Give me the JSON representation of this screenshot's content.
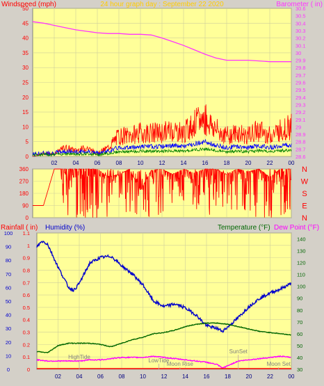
{
  "panel_wind": {
    "left_title": "Windspeed (mph)",
    "center_title": "24 hour graph day : September 22 2020",
    "right_title": "Barometer ( in)",
    "left_ticks": [
      "0",
      "5",
      "10",
      "15",
      "20",
      "25",
      "30",
      "35",
      "40",
      "45",
      "50"
    ],
    "right_ticks": [
      "28.6",
      "28.7",
      "28.8",
      "28.9",
      "29",
      "29.1",
      "29.2",
      "29.3",
      "29.4",
      "29.5",
      "29.6",
      "29.7",
      "29.8",
      "29.9",
      "30",
      "30.1",
      "30.2",
      "30.3",
      "30.4",
      "30.5",
      "30.6"
    ],
    "x_ticks": [
      "02",
      "04",
      "06",
      "08",
      "10",
      "12",
      "14",
      "16",
      "18",
      "20",
      "22",
      "00"
    ]
  },
  "panel_dir": {
    "left_ticks": [
      "0",
      "90",
      "180",
      "270",
      "360"
    ],
    "compass": [
      "N",
      "W",
      "S",
      "E",
      "N"
    ]
  },
  "panel_rain": {
    "rain_title": "Rainfall ( in)",
    "humidity_title": "Humidity (%)",
    "temp_title": "Temperature (°F)",
    "dew_title": "Dew Point (°F)",
    "humidity_ticks": [
      "0",
      "10",
      "20",
      "30",
      "40",
      "50",
      "60",
      "70",
      "80",
      "90",
      "100"
    ],
    "rain_ticks": [
      "0",
      "0.1",
      "0.2",
      "0.3",
      "0.4",
      "0.5",
      "0.6",
      "0.7",
      "0.8",
      "0.9",
      "1",
      "1.1"
    ],
    "temp_ticks": [
      "30",
      "40",
      "50",
      "60",
      "70",
      "80",
      "90",
      "100",
      "110",
      "120",
      "130",
      "140"
    ],
    "x_ticks": [
      "02",
      "04",
      "06",
      "08",
      "10",
      "12",
      "14",
      "16",
      "18",
      "20",
      "22",
      "00"
    ],
    "events": [
      "HighTide",
      "LowTide",
      "Moon Rise",
      "SunSet",
      "Moon Set"
    ]
  },
  "colors": {
    "background": "#d4d0c8",
    "plot": "#ffff99",
    "grid": "#cfcf9a",
    "gust": "#ff0000",
    "wind_avg": "#0000ff",
    "wind_min": "#008000",
    "barometer": "#ff33ff",
    "direction": "#ff0000",
    "humidity": "#0000cc",
    "temperature": "#006600",
    "dew_point": "#ff00ff",
    "rain": "#ff0000"
  },
  "chart_data": [
    {
      "type": "line",
      "title": "24 hour graph day : September 22 2020",
      "x_unit": "hour",
      "xlim": [
        0,
        24
      ],
      "series": [
        {
          "name": "Windspeed (mph)",
          "axis": "left",
          "ylim": [
            0,
            50
          ],
          "x": [
            0,
            1,
            2,
            3,
            4,
            5,
            6,
            7,
            8,
            9,
            10,
            11,
            12,
            13,
            14,
            15,
            16,
            17,
            18,
            19,
            20,
            21,
            22,
            23,
            24
          ],
          "y": [
            0,
            1,
            1,
            3,
            2,
            3,
            1,
            3,
            7,
            7,
            8,
            8,
            8,
            9,
            8,
            11,
            13,
            9,
            7,
            8,
            7,
            9,
            7,
            9,
            10
          ]
        },
        {
          "name": "Barometer ( in)",
          "axis": "right",
          "ylim": [
            28.6,
            30.6
          ],
          "x": [
            0,
            1,
            2,
            3,
            4,
            5,
            6,
            7,
            8,
            9,
            10,
            11,
            12,
            13,
            14,
            15,
            16,
            17,
            18,
            19,
            20,
            21,
            22,
            23,
            24
          ],
          "y": [
            30.42,
            30.4,
            30.37,
            30.34,
            30.31,
            30.29,
            30.27,
            30.26,
            30.26,
            30.25,
            30.25,
            30.24,
            30.2,
            30.15,
            30.1,
            30.04,
            29.98,
            29.93,
            29.9,
            29.9,
            29.9,
            29.89,
            29.88,
            29.88,
            29.88
          ]
        }
      ]
    },
    {
      "type": "line",
      "title": "Wind direction",
      "xlim": [
        0,
        24
      ],
      "ylim": [
        0,
        360
      ],
      "series": [
        {
          "name": "Wind direction",
          "x": [
            0,
            1,
            2,
            3,
            4,
            5,
            6,
            7,
            8,
            9,
            10,
            11,
            12,
            13,
            14,
            15,
            16,
            17,
            18,
            19,
            20,
            21,
            22,
            23,
            24
          ],
          "y": [
            90,
            90,
            360,
            360,
            360,
            360,
            360,
            300,
            320,
            360,
            200,
            350,
            360,
            320,
            360,
            330,
            360,
            360,
            320,
            360,
            340,
            360,
            300,
            360,
            360
          ]
        }
      ]
    },
    {
      "type": "line",
      "xlim": [
        0,
        24
      ],
      "series": [
        {
          "name": "Humidity (%)",
          "axis": "left",
          "ylim": [
            0,
            100
          ],
          "x": [
            0,
            0.5,
            1,
            2,
            3,
            3.5,
            4,
            5,
            6,
            7,
            8,
            9,
            10,
            11,
            12,
            13,
            14,
            15,
            16,
            17,
            17.5,
            18,
            19,
            20,
            21,
            22,
            23,
            24
          ],
          "y": [
            90,
            94,
            92,
            75,
            60,
            58,
            63,
            78,
            82,
            83,
            76,
            70,
            62,
            50,
            46,
            48,
            45,
            40,
            32,
            30,
            28,
            31,
            38,
            46,
            52,
            56,
            59,
            63
          ]
        },
        {
          "name": "Temperature (°F)",
          "axis": "right",
          "ylim": [
            30,
            145
          ],
          "x": [
            0,
            1,
            2,
            3,
            4,
            5,
            6,
            7,
            8,
            9,
            10,
            11,
            12,
            13,
            14,
            15,
            16,
            17,
            18,
            19,
            20,
            21,
            22,
            23,
            24
          ],
          "y": [
            45,
            44,
            50,
            52,
            52,
            52,
            51,
            49,
            52,
            55,
            57,
            60,
            61,
            63,
            66,
            68,
            69,
            69,
            68,
            66,
            64,
            62,
            61,
            60,
            59
          ]
        },
        {
          "name": "Dew Point (°F)",
          "axis": "right",
          "ylim": [
            30,
            145
          ],
          "x": [
            0,
            1,
            2,
            3,
            4,
            5,
            6,
            7,
            8,
            9,
            10,
            11,
            12,
            13,
            14,
            15,
            16,
            17,
            17.5,
            18,
            19,
            20,
            21,
            22,
            23,
            24
          ],
          "y": [
            38,
            37,
            37,
            37,
            37,
            38,
            38,
            39,
            40,
            40,
            40,
            41,
            40,
            39,
            38,
            37,
            36,
            34,
            31,
            33,
            37,
            38,
            39,
            40,
            41,
            40
          ]
        },
        {
          "name": "Rainfall ( in)",
          "axis": "left2",
          "ylim": [
            0,
            1.1
          ],
          "x": [
            0,
            24
          ],
          "y": [
            0,
            0
          ]
        }
      ]
    }
  ]
}
